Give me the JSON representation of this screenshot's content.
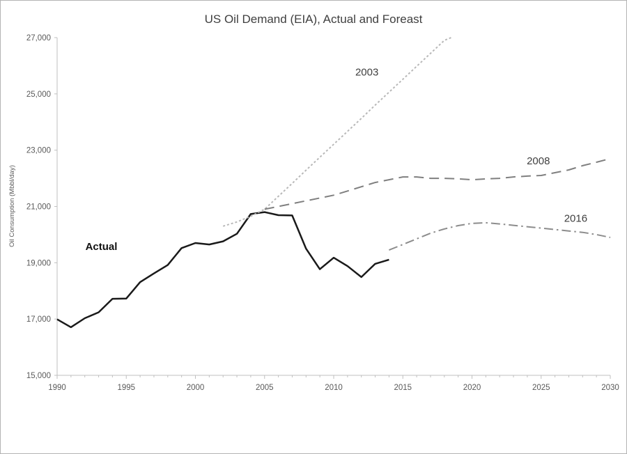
{
  "chart_data": {
    "type": "line",
    "title": "US Oil Demand (EIA), Actual and Foreast",
    "xlabel": "",
    "ylabel": "Oil Consumption  (Mbbl/day)",
    "xlim": [
      1990,
      2030
    ],
    "ylim": [
      15000,
      27000
    ],
    "x_ticks": [
      1990,
      1995,
      2000,
      2005,
      2010,
      2015,
      2020,
      2025,
      2030
    ],
    "y_ticks": [
      "15,000",
      "17,000",
      "19,000",
      "21,000",
      "23,000",
      "25,000",
      "27,000"
    ],
    "grid": false,
    "legend_position": "inline-labels",
    "colors": {
      "axis": "#bfbfbf",
      "tick_label": "#595959",
      "title": "#3f3f3f",
      "actual": "#1a1a1a",
      "forecast_2003": "#b8b8b8",
      "forecast_2008": "#7f7f7f",
      "forecast_2016": "#8c8c8c"
    },
    "series": [
      {
        "name": "Actual",
        "style": "solid",
        "color": "#1a1a1a",
        "width": 2.5,
        "x": [
          1990,
          1991,
          1992,
          1993,
          1994,
          1995,
          1996,
          1997,
          1998,
          1999,
          2000,
          2001,
          2002,
          2003,
          2004,
          2005,
          2006,
          2007,
          2008,
          2009,
          2010,
          2011,
          2012,
          2013,
          2014
        ],
        "values": [
          16990,
          16710,
          17030,
          17240,
          17720,
          17730,
          18310,
          18620,
          18920,
          19520,
          19700,
          19650,
          19760,
          20030,
          20730,
          20800,
          20690,
          20680,
          19500,
          18770,
          19180,
          18880,
          18490,
          18960,
          19110
        ]
      },
      {
        "name": "2003",
        "style": "dotted",
        "color": "#b8b8b8",
        "width": 2,
        "x": [
          2002,
          2003,
          2004,
          2005,
          2006,
          2007,
          2008,
          2009,
          2010,
          2011,
          2012,
          2013,
          2014,
          2015,
          2016,
          2017,
          2018,
          2018.5
        ],
        "values": [
          20300,
          20450,
          20650,
          20900,
          21360,
          21820,
          22290,
          22750,
          23210,
          23670,
          24130,
          24600,
          25060,
          25520,
          25980,
          26440,
          26900,
          27000
        ]
      },
      {
        "name": "2008",
        "style": "dashed",
        "color": "#7f7f7f",
        "width": 2,
        "x": [
          2005,
          2006,
          2007,
          2008,
          2009,
          2010,
          2011,
          2012,
          2013,
          2014,
          2015,
          2016,
          2017,
          2018,
          2019,
          2020,
          2021,
          2022,
          2023,
          2024,
          2025,
          2026,
          2027,
          2028,
          2029,
          2030
        ],
        "values": [
          20900,
          21000,
          21100,
          21200,
          21300,
          21400,
          21550,
          21700,
          21850,
          21950,
          22050,
          22050,
          22000,
          22000,
          21980,
          21950,
          21980,
          22000,
          22050,
          22080,
          22100,
          22200,
          22300,
          22450,
          22570,
          22700
        ]
      },
      {
        "name": "2016",
        "style": "dashdot",
        "color": "#8c8c8c",
        "width": 2,
        "x": [
          2014,
          2015,
          2016,
          2017,
          2018,
          2019,
          2020,
          2021,
          2022,
          2023,
          2024,
          2025,
          2026,
          2027,
          2028,
          2029,
          2030
        ],
        "values": [
          19450,
          19650,
          19850,
          20050,
          20200,
          20320,
          20400,
          20420,
          20380,
          20330,
          20280,
          20230,
          20180,
          20130,
          20080,
          20000,
          19900
        ]
      }
    ],
    "labels": [
      {
        "text": "Actual",
        "x": 1993.2,
        "y": 19550,
        "bold": true,
        "color": "#111111"
      },
      {
        "text": "2003",
        "x": 2012.4,
        "y": 25750,
        "bold": false,
        "color": "#3f3f3f"
      },
      {
        "text": "2008",
        "x": 2024.8,
        "y": 22600,
        "bold": false,
        "color": "#3f3f3f"
      },
      {
        "text": "2016",
        "x": 2027.5,
        "y": 20550,
        "bold": false,
        "color": "#3f3f3f"
      }
    ]
  }
}
